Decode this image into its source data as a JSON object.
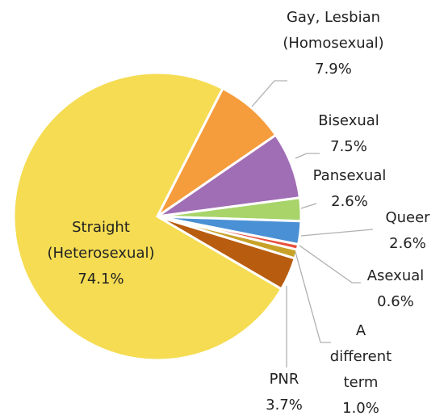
{
  "chart_data": {
    "type": "pie",
    "categories": [
      "Straight\n(Heterosexual)",
      "Gay, Lesbian\n(Homosexual)",
      "Bisexual",
      "Pansexual",
      "Queer",
      "Asexual",
      "A\ndifferent\nterm",
      "PNR"
    ],
    "values": [
      74.1,
      7.9,
      7.5,
      2.6,
      2.6,
      0.6,
      1.0,
      3.7
    ],
    "value_labels": [
      "74.1%",
      "7.9%",
      "7.5%",
      "2.6%",
      "2.6%",
      "0.6%",
      "1.0%",
      "3.7%"
    ],
    "colors": [
      "#f5dc52",
      "#f59c3c",
      "#a06eb5",
      "#a8d46a",
      "#4a90d4",
      "#e8503e",
      "#c8a228",
      "#b85c10"
    ]
  }
}
